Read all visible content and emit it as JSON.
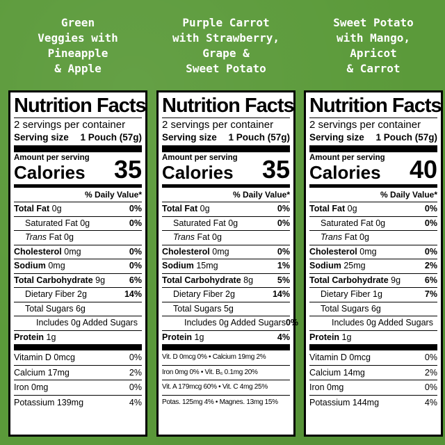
{
  "columns": [
    {
      "title_lines": [
        "Green",
        "Veggies with",
        "Pineapple",
        "& Apple"
      ],
      "nf_title": "Nutrition Facts",
      "servings": "2 servings per container",
      "serving_size_label": "Serving size",
      "serving_size_value": "1 Pouch (57g)",
      "amount_label": "Amount per serving",
      "calories_label": "Calories",
      "calories": "35",
      "dv_header": "% Daily Value*",
      "nutrients": {
        "fat_label": "Total Fat",
        "fat_amt": "0g",
        "fat_dv": "0%",
        "satfat_label": "Saturated Fat 0g",
        "satfat_dv": "0%",
        "trans_label": "Trans",
        "trans_amt": "Fat 0g",
        "chol_label": "Cholesterol",
        "chol_amt": "0mg",
        "chol_dv": "0%",
        "sodium_label": "Sodium",
        "sodium_amt": "0mg",
        "sodium_dv": "0%",
        "carb_label": "Total Carbohydrate",
        "carb_amt": "9g",
        "carb_dv": "6%",
        "fiber_label": "Dietary Fiber 2g",
        "fiber_dv": "14%",
        "sugars_label": "Total Sugars 6g",
        "added_label": "Includes 0g Added Sugars",
        "added_dv": "",
        "protein_label": "Protein",
        "protein_amt": "1g",
        "protein_dv": ""
      },
      "vitamins": [
        {
          "name": "Vitamin D 0mcg",
          "dv": "0%"
        },
        {
          "name": "Calcium 17mg",
          "dv": "2%"
        },
        {
          "name": "Iron 0mg",
          "dv": "0%"
        },
        {
          "name": "Potassium 139mg",
          "dv": "4%"
        }
      ]
    },
    {
      "title_lines": [
        "Purple Carrot",
        "with Strawberry,",
        "Grape &",
        "Sweet Potato"
      ],
      "nf_title": "Nutrition Facts",
      "servings": "2 servings per container",
      "serving_size_label": "Serving size",
      "serving_size_value": "1 Pouch (57g)",
      "amount_label": "Amount per serving",
      "calories_label": "Calories",
      "calories": "35",
      "dv_header": "% Daily Value*",
      "nutrients": {
        "fat_label": "Total Fat",
        "fat_amt": "0g",
        "fat_dv": "0%",
        "satfat_label": "Saturated Fat 0g",
        "satfat_dv": "0%",
        "trans_label": "Trans",
        "trans_amt": "Fat 0g",
        "chol_label": "Cholesterol",
        "chol_amt": "0mg",
        "chol_dv": "0%",
        "sodium_label": "Sodium",
        "sodium_amt": "15mg",
        "sodium_dv": "1%",
        "carb_label": "Total Carbohydrate",
        "carb_amt": "8g",
        "carb_dv": "5%",
        "fiber_label": "Dietary Fiber 2g",
        "fiber_dv": "14%",
        "sugars_label": "Total Sugars 5g",
        "added_label": "Includes 0g Added Sugars",
        "added_dv": "0%",
        "protein_label": "Protein",
        "protein_amt": "1g",
        "protein_dv": "4%"
      },
      "compact_vitamins": [
        "Vit. D 0mcg 0% • Calcium 19mg 2%",
        "Iron 0mg 0% • Vit. B₆ 0.1mg 20%",
        "Vit. A 179mcg 60% • Vit. C 4mg 25%",
        "Potas. 125mg 4% • Magnes. 13mg 15%"
      ]
    },
    {
      "title_lines": [
        "Sweet Potato",
        "with Mango,",
        "Apricot",
        "& Carrot"
      ],
      "nf_title": "Nutrition Facts",
      "servings": "2 servings per container",
      "serving_size_label": "Serving size",
      "serving_size_value": "1 Pouch (57g)",
      "amount_label": "Amount per serving",
      "calories_label": "Calories",
      "calories": "40",
      "dv_header": "% Daily Value*",
      "nutrients": {
        "fat_label": "Total Fat",
        "fat_amt": "0g",
        "fat_dv": "0%",
        "satfat_label": "Saturated Fat 0g",
        "satfat_dv": "0%",
        "trans_label": "Trans",
        "trans_amt": "Fat 0g",
        "chol_label": "Cholesterol",
        "chol_amt": "0mg",
        "chol_dv": "0%",
        "sodium_label": "Sodium",
        "sodium_amt": "25mg",
        "sodium_dv": "2%",
        "carb_label": "Total Carbohydrate",
        "carb_amt": "9g",
        "carb_dv": "6%",
        "fiber_label": "Dietary Fiber 1g",
        "fiber_dv": "7%",
        "sugars_label": "Total Sugars 6g",
        "added_label": "Includes 0g Added Sugars",
        "added_dv": "",
        "protein_label": "Protein",
        "protein_amt": "1g",
        "protein_dv": ""
      },
      "vitamins": [
        {
          "name": "Vitamin D 0mcg",
          "dv": "0%"
        },
        {
          "name": "Calcium 14mg",
          "dv": "2%"
        },
        {
          "name": "Iron 0mg",
          "dv": "0%"
        },
        {
          "name": "Potassium 144mg",
          "dv": "4%"
        }
      ]
    }
  ]
}
